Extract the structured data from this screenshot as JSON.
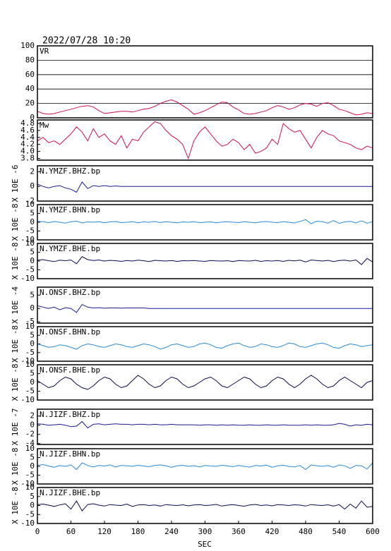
{
  "chart_data": {
    "type": "line",
    "title": "2022/07/28 10:20",
    "xlabel": "SEC",
    "xlim": [
      0,
      600
    ],
    "xticks": [
      0,
      60,
      120,
      180,
      240,
      300,
      360,
      420,
      480,
      540,
      600
    ],
    "x": [
      0,
      10,
      20,
      30,
      40,
      50,
      60,
      70,
      80,
      90,
      100,
      110,
      120,
      130,
      140,
      150,
      160,
      170,
      180,
      190,
      200,
      210,
      220,
      230,
      240,
      250,
      260,
      270,
      280,
      290,
      300,
      310,
      320,
      330,
      340,
      350,
      360,
      370,
      380,
      390,
      400,
      410,
      420,
      430,
      440,
      450,
      460,
      470,
      480,
      490,
      500,
      510,
      520,
      530,
      540,
      550,
      560,
      570,
      580,
      590,
      600
    ],
    "panels": [
      {
        "name": "VR",
        "color": "#d0104a",
        "grid": true,
        "ylim": [
          0,
          100
        ],
        "yticks": [
          0,
          20,
          40,
          60,
          80,
          100
        ],
        "values": [
          9,
          6,
          5,
          6,
          8,
          10,
          12,
          14,
          16,
          17,
          15,
          10,
          6,
          7,
          8,
          9,
          9,
          8,
          10,
          12,
          13,
          16,
          20,
          23,
          25,
          22,
          17,
          12,
          5,
          7,
          10,
          14,
          18,
          22,
          21,
          15,
          11,
          6,
          5,
          6,
          8,
          10,
          14,
          17,
          15,
          12,
          14,
          18,
          20,
          19,
          16,
          20,
          21,
          17,
          12,
          10,
          7,
          4,
          5,
          7,
          6
        ]
      },
      {
        "name": "Mw",
        "color": "#d0104a",
        "grid": false,
        "ylim": [
          3.75,
          4.9
        ],
        "yticks": [
          3.8,
          {
            "value": 4,
            "label": "4.0"
          },
          4.2,
          4.4,
          4.6,
          4.8
        ],
        "values": [
          4.3,
          4.4,
          4.25,
          4.3,
          4.2,
          4.35,
          4.5,
          4.7,
          4.55,
          4.3,
          4.65,
          4.4,
          4.5,
          4.3,
          4.2,
          4.45,
          4.1,
          4.35,
          4.3,
          4.55,
          4.7,
          4.85,
          4.8,
          4.6,
          4.45,
          4.35,
          4.2,
          3.8,
          4.3,
          4.55,
          4.7,
          4.5,
          4.3,
          4.15,
          4.2,
          4.35,
          4.25,
          4.05,
          4.2,
          3.95,
          4,
          4.1,
          4.35,
          4.2,
          4.8,
          4.65,
          4.55,
          4.6,
          4.35,
          4.1,
          4.4,
          4.6,
          4.5,
          4.45,
          4.3,
          4.25,
          4.2,
          4.1,
          4.05,
          4.15,
          4.1
        ]
      },
      {
        "name": "N.YMZF.BHZ.bp",
        "ylabel": "X 10E -6",
        "color": "#1a1a9a",
        "grid": false,
        "ylim": [
          -2,
          2.8
        ],
        "yticks": [
          -2,
          0,
          2
        ],
        "values": [
          0.3,
          0,
          -0.2,
          0,
          0.1,
          -0.2,
          -0.4,
          -0.8,
          0.6,
          -0.3,
          0.1,
          0,
          0.1,
          0,
          0.05,
          0,
          0,
          0,
          0,
          0,
          0,
          0,
          0,
          0,
          0,
          0,
          0,
          0,
          0,
          0,
          0,
          0,
          0,
          0,
          0,
          0,
          0,
          0,
          0,
          0,
          0,
          0,
          0,
          0,
          0,
          0,
          0,
          0,
          0,
          0,
          0,
          0,
          0,
          0,
          0,
          0,
          0,
          0,
          0,
          0,
          0
        ]
      },
      {
        "name": "N.YMZF.BHN.bp",
        "ylabel": "X 10E -8",
        "color": "#2a8ad8",
        "grid": false,
        "ylim": [
          -10,
          10
        ],
        "yticks": [
          -10,
          -5,
          0,
          5,
          10
        ],
        "values": [
          0.5,
          0.3,
          -0.2,
          0.4,
          0,
          -0.5,
          0.3,
          0.6,
          -0.4,
          0.2,
          0,
          0.3,
          -0.3,
          0.2,
          0.4,
          -0.2,
          0,
          0.3,
          -0.3,
          0.2,
          0,
          0.4,
          -0.2,
          0.3,
          0,
          -0.3,
          0.2,
          0,
          0.3,
          -0.2,
          0,
          0.2,
          -0.3,
          0.1,
          0.3,
          0,
          -0.2,
          0.3,
          0,
          -0.3,
          0.2,
          0.4,
          0,
          -0.2,
          0.3,
          0,
          -0.4,
          0.5,
          1.5,
          -0.8,
          0.6,
          0.3,
          -0.5,
          1,
          -0.6,
          0.2,
          0.5,
          -0.3,
          0.8,
          -0.5,
          0.3
        ]
      },
      {
        "name": "N.YMZF.BHE.bp",
        "ylabel": "X 10E -8",
        "color": "#0a0a50",
        "grid": false,
        "ylim": [
          -10,
          10
        ],
        "yticks": [
          -10,
          -5,
          0,
          5,
          10
        ],
        "values": [
          0.5,
          0.8,
          0.2,
          -0.3,
          0.5,
          0.2,
          0.6,
          -1.5,
          2.5,
          0.8,
          0.3,
          0.6,
          0,
          0.4,
          0.2,
          -0.2,
          0.3,
          0,
          0.5,
          0.2,
          -0.3,
          0.4,
          0.2,
          0,
          0.3,
          -0.2,
          0.2,
          0.1,
          0.3,
          0,
          -0.2,
          0.3,
          0.1,
          0,
          0.2,
          -0.3,
          0.3,
          0.1,
          0,
          0.4,
          -0.2,
          0.2,
          0,
          0.3,
          -0.2,
          0.4,
          0.1,
          0.5,
          -0.5,
          0.6,
          0.3,
          0,
          0.4,
          -0.3,
          0.3,
          0.5,
          0,
          0.6,
          -2,
          1.5,
          -0.5
        ]
      },
      {
        "name": "N.ONSF.BHZ.bp",
        "ylabel": "X 10E -4",
        "color": "#1a1a9a",
        "grid": false,
        "ylim": [
          -5.5,
          8
        ],
        "yticks": [
          -5,
          0,
          5
        ],
        "values": [
          1,
          0.5,
          0,
          0.5,
          -0.5,
          0.3,
          0,
          -1.5,
          1.5,
          0.5,
          0.2,
          0.3,
          0.1,
          0.2,
          0.2,
          0.1,
          0.2,
          0.2,
          0.2,
          0.2,
          0,
          0,
          0,
          0,
          0,
          0,
          0,
          0,
          0,
          0,
          0,
          0,
          0,
          0,
          0,
          0,
          0,
          0,
          0,
          0,
          0,
          0,
          0,
          0,
          0,
          0,
          0,
          0,
          0,
          0,
          0,
          0,
          0,
          0,
          0,
          0,
          0,
          0,
          0,
          0,
          0
        ]
      },
      {
        "name": "N.ONSF.BHN.bp",
        "ylabel": "X 10E -8",
        "color": "#2a8ad8",
        "grid": false,
        "ylim": [
          -10,
          10
        ],
        "yticks": [
          -10,
          -5,
          0,
          5,
          10
        ],
        "values": [
          0,
          -1,
          -2,
          -1.5,
          -0.5,
          -1,
          -2,
          -3,
          -1,
          0,
          -0.5,
          -1.5,
          -2,
          -1,
          0,
          -0.5,
          -1.5,
          -2,
          -1,
          0,
          -0.5,
          -1.5,
          -3,
          -2,
          -0.5,
          0,
          -1,
          -2,
          -1.5,
          0,
          0.5,
          -0.5,
          -2,
          -2.5,
          -1,
          0,
          0.5,
          -1,
          -2,
          -1.5,
          0,
          -0.5,
          -1.5,
          -2,
          -1,
          0.5,
          0,
          -1.5,
          -2,
          -1,
          0,
          0.5,
          -0.5,
          -2,
          -2.5,
          -1,
          0,
          -0.5,
          -1.5,
          -1,
          -0.5
        ]
      },
      {
        "name": "N.ONSF.BHE.bp",
        "ylabel": "X 10E -8",
        "color": "#0a0a50",
        "grid": false,
        "ylim": [
          -10,
          10
        ],
        "yticks": [
          -10,
          -5,
          0,
          5,
          10
        ],
        "values": [
          1,
          -1,
          -3,
          -2,
          1,
          3,
          2,
          -1,
          -3,
          -4,
          -2,
          1,
          3,
          2,
          -1,
          -3,
          -2,
          1,
          4,
          2,
          -1,
          -3,
          -2,
          1,
          3,
          2,
          -1,
          -3,
          -2,
          0,
          2,
          3,
          1,
          -2,
          -3,
          -1,
          1,
          3,
          2,
          -1,
          -3,
          -2,
          1,
          3,
          2,
          -1,
          -3,
          -1,
          2,
          4,
          2,
          -1,
          -3,
          -2,
          1,
          3,
          1,
          -1,
          -3,
          0,
          1
        ]
      },
      {
        "name": "N.JIZF.BHZ.bp",
        "ylabel": "X 10E -7",
        "color": "#1a1a9a",
        "grid": false,
        "ylim": [
          -4.2,
          3.5
        ],
        "yticks": [
          -4,
          -2,
          0,
          2
        ],
        "values": [
          0.3,
          0.2,
          0,
          0.1,
          0.2,
          0,
          -0.3,
          -0.2,
          0.8,
          -0.6,
          0.2,
          0.3,
          0.1,
          0.2,
          0.3,
          0.2,
          0.2,
          0.1,
          0.2,
          0.2,
          0.1,
          0.2,
          0.1,
          0.1,
          0.2,
          0.1,
          0.1,
          0.1,
          0.1,
          0,
          0.1,
          0.1,
          0,
          0.1,
          0,
          0.1,
          0,
          0,
          0.1,
          0,
          0,
          0.1,
          0,
          0,
          0.1,
          0,
          0,
          0,
          0.1,
          0,
          0.1,
          0,
          0,
          0.1,
          0.4,
          0.2,
          -0.2,
          0.1,
          0,
          0.2,
          0.1
        ]
      },
      {
        "name": "N.JIZF.BHN.bp",
        "ylabel": "X 10E -8",
        "color": "#2a8ad8",
        "grid": false,
        "ylim": [
          -10,
          10
        ],
        "yticks": [
          -10,
          -5,
          0,
          5,
          10
        ],
        "values": [
          0.5,
          1,
          0.2,
          -0.5,
          0.5,
          0,
          0.8,
          -1.8,
          2,
          0.5,
          -0.3,
          0.5,
          0.2,
          0.8,
          -0.3,
          0.5,
          0.3,
          0,
          0.6,
          0.2,
          -0.2,
          0.5,
          0.8,
          0.3,
          -0.5,
          0.3,
          0.6,
          0,
          0.4,
          -0.3,
          0.5,
          0.2,
          0,
          0.6,
          0.3,
          -0.2,
          0.5,
          0,
          -0.4,
          0.5,
          0.2,
          0.7,
          -0.5,
          0.3,
          0.6,
          0,
          -0.3,
          0.5,
          -1.8,
          0.8,
          0.3,
          0,
          0.5,
          -0.5,
          0.8,
          0.3,
          -1.2,
          0.5,
          0.3,
          -1.5,
          2
        ]
      },
      {
        "name": "N.JIZF.BHE.bp",
        "ylabel": "X 10E -8",
        "color": "#0a0a50",
        "grid": false,
        "ylim": [
          -10,
          10
        ],
        "yticks": [
          -10,
          -5,
          0,
          5,
          10
        ],
        "values": [
          0.5,
          0.8,
          0.2,
          -0.5,
          0.3,
          1,
          -2,
          2.5,
          -3,
          0.5,
          1,
          0.2,
          -0.3,
          0.5,
          0.2,
          0,
          0.8,
          -0.5,
          0.3,
          0.5,
          0,
          0.3,
          -0.3,
          0.5,
          0.2,
          0,
          0.4,
          -0.2,
          0.3,
          0.5,
          0,
          0.2,
          0.6,
          -0.3,
          0.2,
          0.5,
          0,
          -0.4,
          0.3,
          0.6,
          0,
          0.3,
          -0.2,
          0.5,
          0.3,
          0,
          0.4,
          0.2,
          -0.3,
          0.5,
          0.2,
          0,
          0.4,
          -0.3,
          0.5,
          -2,
          0.8,
          -1.5,
          2.5,
          -1,
          -0.5
        ]
      }
    ]
  }
}
